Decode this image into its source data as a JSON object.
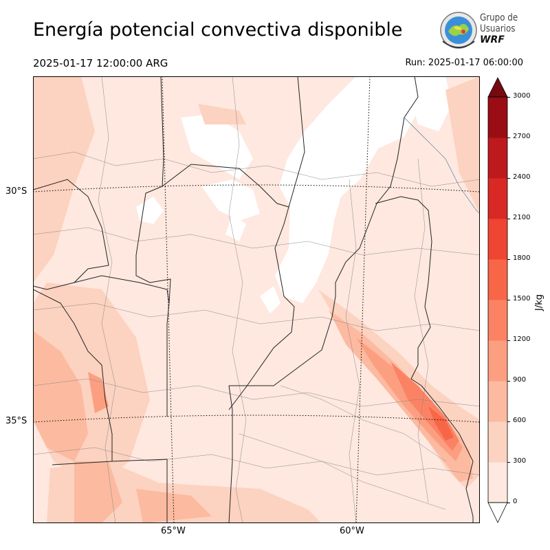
{
  "header": {
    "title": "Energía potencial convectiva disponible",
    "valid_time": "2025-01-17 12:00:00 ARG",
    "run_time": "Run: 2025-01-17 06:00:00"
  },
  "logo": {
    "line1": "Grupo de",
    "line2": "Usuarios",
    "line3": "WRF"
  },
  "map": {
    "lat_labels": [
      "30°S",
      "35°S"
    ],
    "lon_labels": [
      "65°W",
      "60°W"
    ]
  },
  "colorbar": {
    "units": "J/kg",
    "ticks": [
      "0",
      "300",
      "600",
      "900",
      "1200",
      "1500",
      "1800",
      "2100",
      "2400",
      "2700",
      "3000"
    ],
    "colors": [
      "#fee8df",
      "#fcd2c0",
      "#fcbaa0",
      "#fc9f81",
      "#fb8363",
      "#f86648",
      "#ef4533",
      "#d92924",
      "#bc1a1c",
      "#9a0d14",
      "#750a10"
    ]
  }
}
